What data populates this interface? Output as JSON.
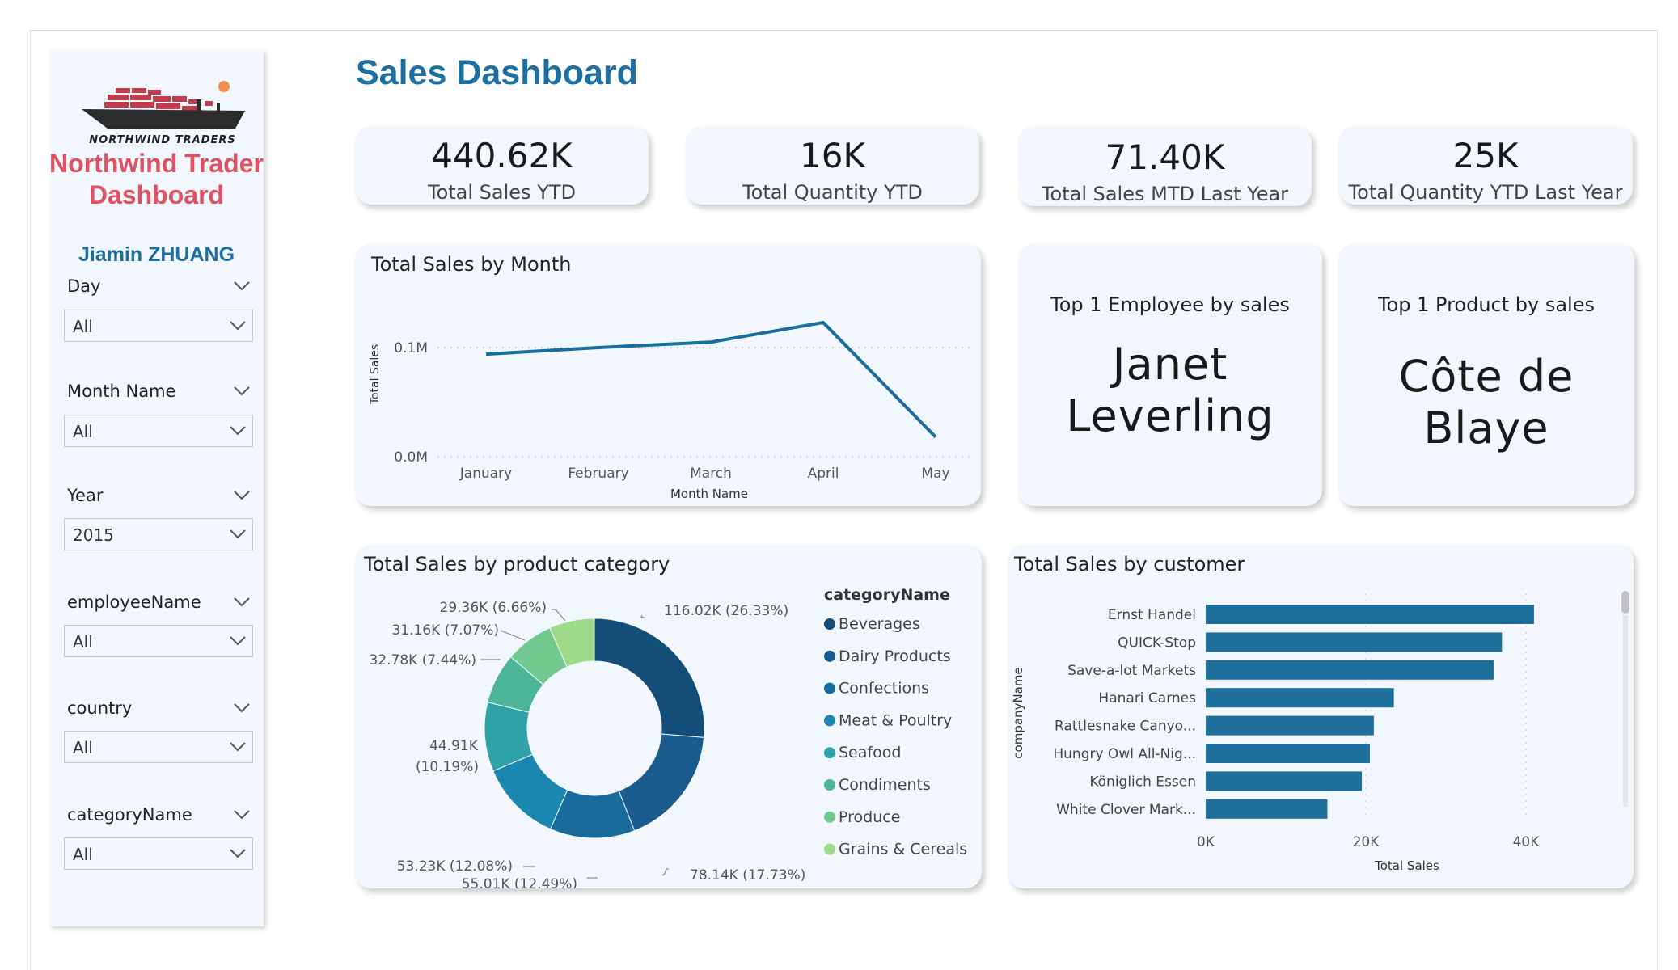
{
  "title": "Sales Dashboard",
  "brand": {
    "logo_text": "NORTHWIND TRADERS",
    "title": "Northwind Trader Dashboard",
    "author": "Jiamin ZHUANG"
  },
  "slicers": [
    {
      "label": "Day",
      "value": "All"
    },
    {
      "label": "Month Name",
      "value": "All"
    },
    {
      "label": "Year",
      "value": "2015"
    },
    {
      "label": "employeeName",
      "value": "All"
    },
    {
      "label": "country",
      "value": "All"
    },
    {
      "label": "categoryName",
      "value": "All"
    }
  ],
  "kpis": [
    {
      "value": "440.62K",
      "label": "Total Sales YTD"
    },
    {
      "value": "16K",
      "label": "Total Quantity YTD"
    },
    {
      "value": "71.40K",
      "label": "Total Sales MTD Last Year"
    },
    {
      "value": "25K",
      "label": "Total Quantity YTD Last Year"
    }
  ],
  "top_employee": {
    "title": "Top 1 Employee by sales",
    "value": "Janet Leverling"
  },
  "top_product": {
    "title": "Top 1 Product by sales",
    "value": "Côte de Blaye"
  },
  "colors": {
    "accent": "#1e6fa1",
    "brand_red": "#e05263",
    "card_bg": "#f1f7fc",
    "line": "#1a6e9b",
    "bar": "#1e6f9b"
  },
  "chart_data": [
    {
      "type": "line",
      "title": "Total Sales by Month",
      "xlabel": "Month Name",
      "ylabel": "Total Sales",
      "categories": [
        "January",
        "February",
        "March",
        "April",
        "May"
      ],
      "values": [
        0.094,
        0.1,
        0.105,
        0.123,
        0.018
      ],
      "y_ticks": [
        {
          "value": 0.0,
          "label": "0.0M"
        },
        {
          "value": 0.1,
          "label": "0.1M"
        }
      ],
      "ylim": [
        0,
        0.13
      ]
    },
    {
      "type": "pie",
      "title": "Total Sales by product category",
      "legend_title": "categoryName",
      "labels": [
        "Beverages",
        "Dairy Products",
        "Confections",
        "Meat & Poultry",
        "Seafood",
        "Condiments",
        "Produce",
        "Grains & Cereals"
      ],
      "values": [
        116.02,
        78.14,
        55.01,
        53.23,
        44.91,
        32.78,
        31.16,
        29.36
      ],
      "percents": [
        26.33,
        17.73,
        12.49,
        12.08,
        10.19,
        7.44,
        7.07,
        6.66
      ],
      "data_labels": [
        "116.02K (26.33%)",
        "78.14K (17.73%)",
        "55.01K (12.49%)",
        "53.23K (12.08%)",
        "44.91K (10.19%)",
        "32.78K (7.44%)",
        "31.16K (7.07%)",
        "29.36K (6.66%)"
      ],
      "colors": [
        "#124e78",
        "#1b5c8f",
        "#176c99",
        "#1b87b0",
        "#2fa2a8",
        "#4cb596",
        "#72c98f",
        "#9ddb8a"
      ]
    },
    {
      "type": "bar",
      "orientation": "horizontal",
      "title": "Total Sales by customer",
      "xlabel": "Total Sales",
      "ylabel": "companyName",
      "categories": [
        "Ernst Handel",
        "QUICK-Stop",
        "Save-a-lot Markets",
        "Hanari Carnes",
        "Rattlesnake Canyo...",
        "Hungry Owl All-Nig...",
        "Königlich Essen",
        "White Clover Mark..."
      ],
      "values": [
        41000,
        37000,
        36000,
        23500,
        21000,
        20500,
        19500,
        15200
      ],
      "xlim": [
        0,
        45000
      ],
      "x_ticks": [
        {
          "value": 0,
          "label": "0K"
        },
        {
          "value": 20000,
          "label": "20K"
        },
        {
          "value": 40000,
          "label": "40K"
        }
      ]
    }
  ]
}
